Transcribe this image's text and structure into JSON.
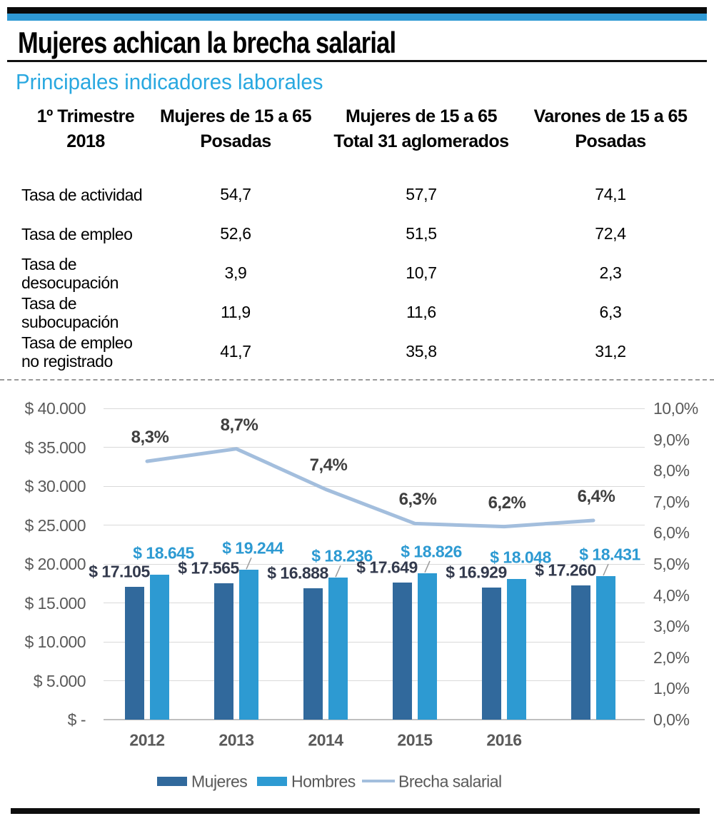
{
  "header": {
    "title": "Mujeres achican la brecha salarial",
    "subtitle": "Principales indicadores laborales",
    "accent_color": "#29a8e0"
  },
  "table": {
    "columns": [
      {
        "lines": [
          "1º Trimestre",
          "2018"
        ]
      },
      {
        "lines": [
          "Mujeres de 15 a 65",
          "Posadas"
        ]
      },
      {
        "lines": [
          "Mujeres de 15 a 65",
          "Total 31 aglomerados"
        ]
      },
      {
        "lines": [
          "Varones de 15 a 65",
          "Posadas"
        ]
      }
    ],
    "rows": [
      {
        "label_lines": [
          "Tasa de actividad"
        ],
        "values": [
          "54,7",
          "57,7",
          "74,1"
        ]
      },
      {
        "label_lines": [
          "Tasa de empleo"
        ],
        "values": [
          "52,6",
          "51,5",
          "72,4"
        ]
      },
      {
        "label_lines": [
          "Tasa de desocupación"
        ],
        "values": [
          "3,9",
          "10,7",
          "2,3"
        ]
      },
      {
        "label_lines": [
          "Tasa de subocupación"
        ],
        "values": [
          "11,9",
          "11,6",
          "6,3"
        ]
      },
      {
        "label_lines": [
          "Tasa de empleo",
          "no registrado"
        ],
        "values": [
          "41,7",
          "35,8",
          "31,2"
        ]
      }
    ]
  },
  "chart_data": {
    "type": "bar",
    "subtype": "combo-bar-line",
    "categories": [
      "2012",
      "2013",
      "2014",
      "2015",
      "2016",
      ""
    ],
    "series": [
      {
        "name": "Mujeres",
        "type": "bar",
        "axis": "left",
        "color": "#31699c",
        "values": [
          17105,
          17565,
          16888,
          17649,
          16929,
          17260
        ],
        "labels": [
          "$ 17.105",
          "$ 17.565",
          "$ 16.888",
          "$ 17.649",
          "$ 16.929",
          "$ 17.260"
        ],
        "label_color": "#333a4d"
      },
      {
        "name": "Hombres",
        "type": "bar",
        "axis": "left",
        "color": "#2d9ad2",
        "values": [
          18645,
          19244,
          18236,
          18826,
          18048,
          18431
        ],
        "labels": [
          "$ 18.645",
          "$ 19.244",
          "$ 18.236",
          "$ 18.826",
          "$ 18.048",
          "$ 18.431"
        ],
        "label_color": "#2d9ad2"
      },
      {
        "name": "Brecha salarial",
        "type": "line",
        "axis": "right",
        "color": "#a3bedd",
        "values": [
          8.3,
          8.7,
          7.4,
          6.3,
          6.2,
          6.4
        ],
        "labels": [
          "8,3%",
          "8,7%",
          "7,4%",
          "6,3%",
          "6,2%",
          "6,4%"
        ],
        "label_color": "#3f3f3f"
      }
    ],
    "left_axis": {
      "min": 0,
      "max": 40000,
      "step": 5000,
      "ticks": [
        "$ 40.000",
        "$ 35.000",
        "$ 30.000",
        "$ 25.000",
        "$ 20.000",
        "$ 15.000",
        "$ 10.000",
        "$ 5.000",
        "$ -"
      ]
    },
    "right_axis": {
      "min": 0,
      "max": 10,
      "step": 1,
      "ticks": [
        "10,0%",
        "9,0%",
        "8,0%",
        "7,0%",
        "6,0%",
        "5,0%",
        "4,0%",
        "3,0%",
        "2,0%",
        "1,0%",
        "0,0%"
      ]
    },
    "grid": true,
    "legend_position": "bottom",
    "legend": [
      {
        "label": "Mujeres",
        "color": "#31699c",
        "type": "swatch"
      },
      {
        "label": "Hombres",
        "color": "#2d9ad2",
        "type": "swatch"
      },
      {
        "label": "Brecha salarial",
        "color": "#a3bedd",
        "type": "line"
      }
    ]
  }
}
